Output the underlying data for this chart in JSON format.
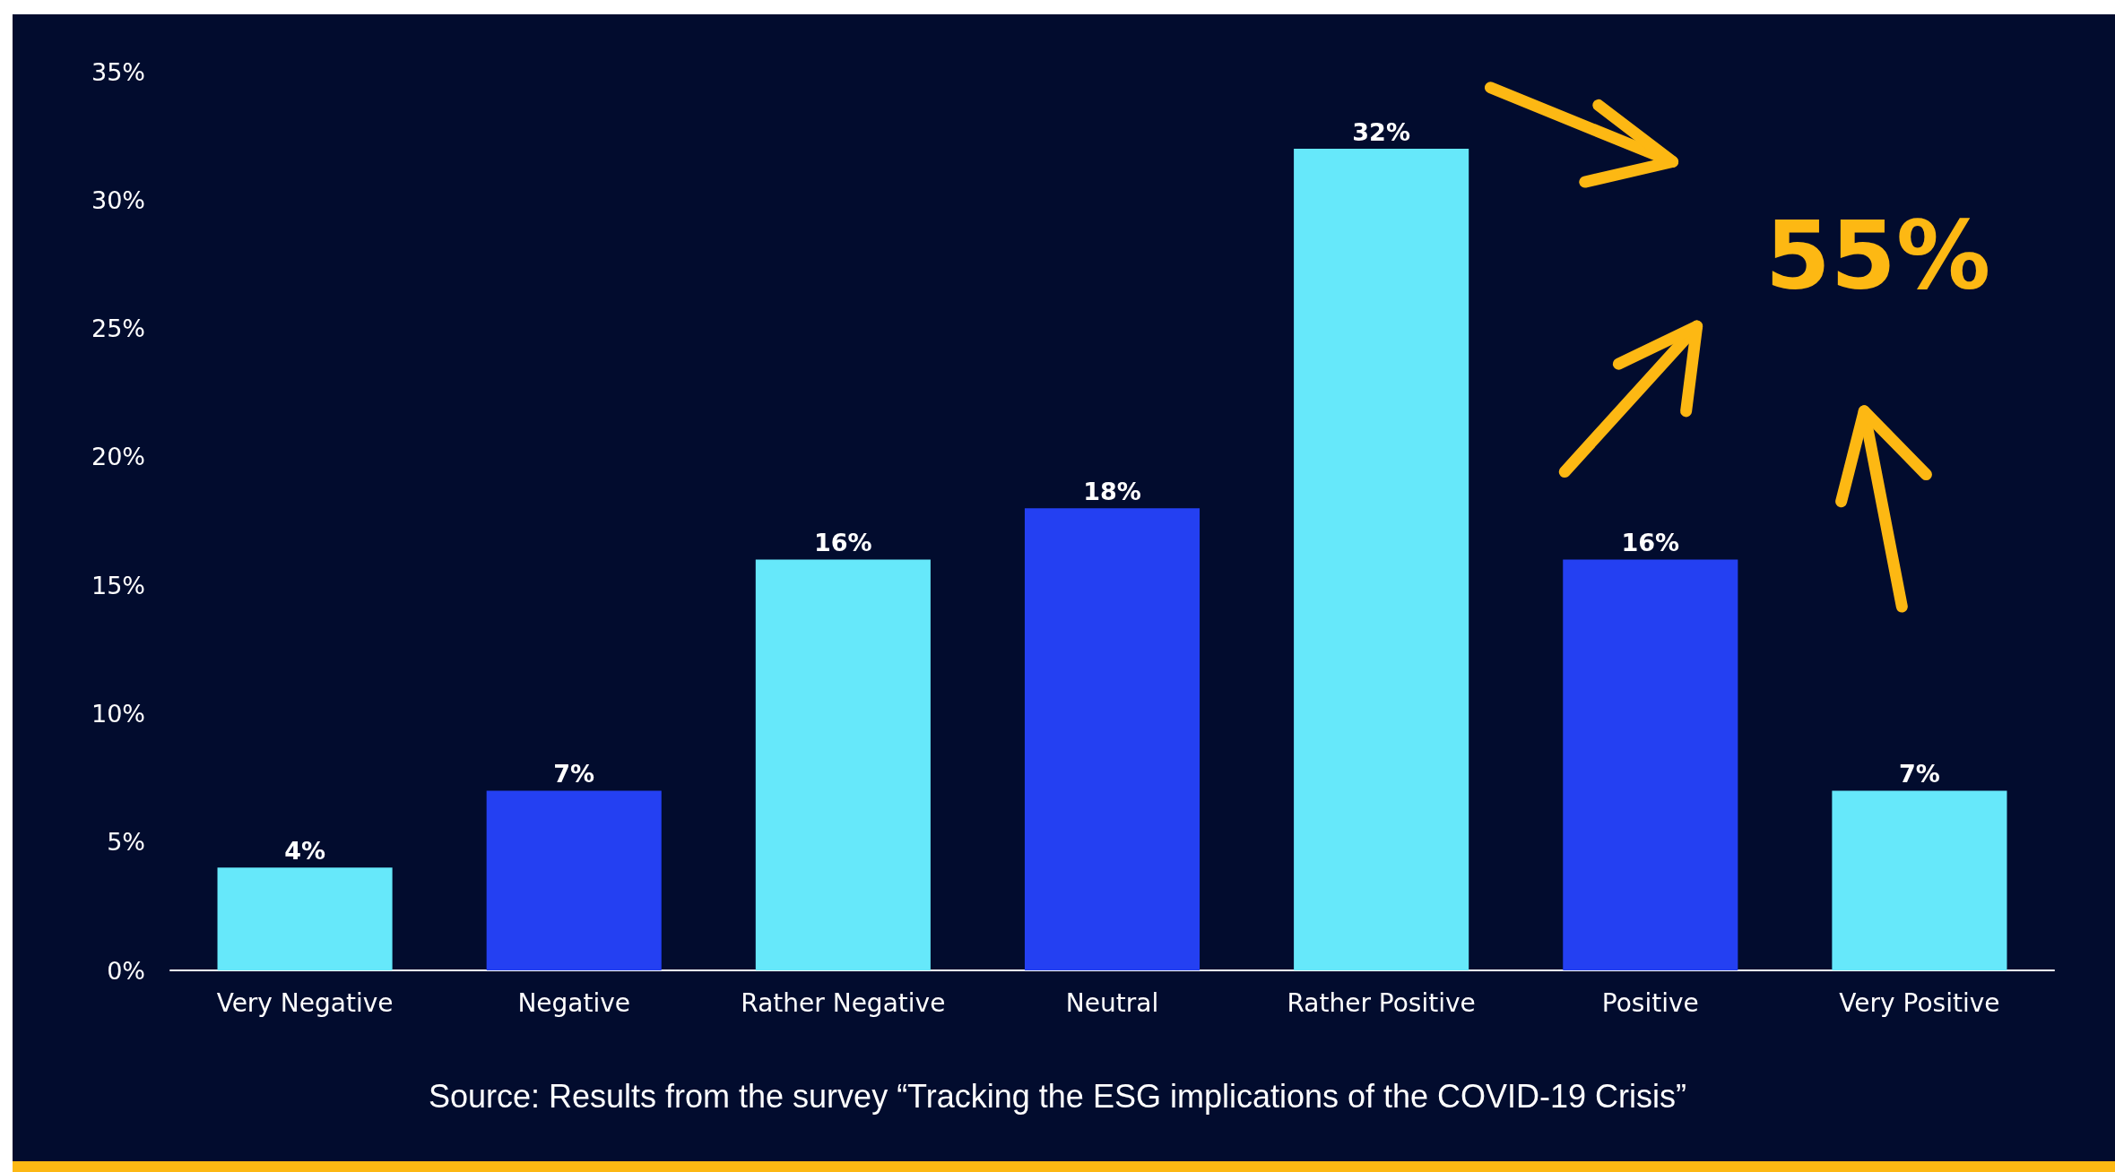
{
  "chart_data": {
    "type": "bar",
    "categories": [
      "Very Negative",
      "Negative",
      "Rather Negative",
      "Neutral",
      "Rather Positive",
      "Positive",
      "Very Positive"
    ],
    "values": [
      4,
      7,
      16,
      18,
      32,
      16,
      7
    ],
    "colors": [
      "#66e8fa",
      "#2440f2",
      "#66e8fa",
      "#2440f2",
      "#66e8fa",
      "#2440f2",
      "#66e8fa"
    ],
    "value_labels": [
      "4%",
      "7%",
      "16%",
      "18%",
      "32%",
      "16%",
      "7%"
    ],
    "ylim": [
      0,
      35
    ],
    "yticks": [
      {
        "value": 0,
        "label": "0%"
      },
      {
        "value": 5,
        "label": "5%"
      },
      {
        "value": 10,
        "label": "10%"
      },
      {
        "value": 15,
        "label": "15%"
      },
      {
        "value": 20,
        "label": "20%"
      },
      {
        "value": 25,
        "label": "25%"
      },
      {
        "value": 30,
        "label": "30%"
      },
      {
        "value": 35,
        "label": "35%"
      }
    ],
    "annotations": [
      "55%",
      "Source: Results from the survey “Tracking the ESG implications of the COVID-19 Crisis”"
    ],
    "grid": false
  }
}
